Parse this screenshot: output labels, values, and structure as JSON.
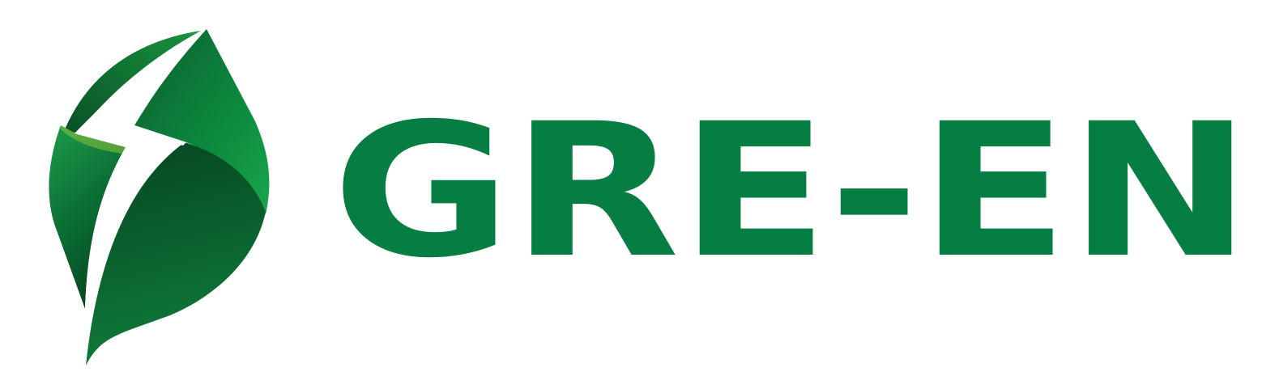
{
  "brand": {
    "wordmark": "GRE-EN",
    "emblem_icon": "leaf-lightning-icon",
    "colors": {
      "wordmark": "#067e43",
      "leaf_dark": "#0a5a2c",
      "leaf_mid": "#0c7a3a",
      "leaf_light": "#1aa24a",
      "accent": "#8fc23a",
      "background": "#ffffff"
    }
  }
}
